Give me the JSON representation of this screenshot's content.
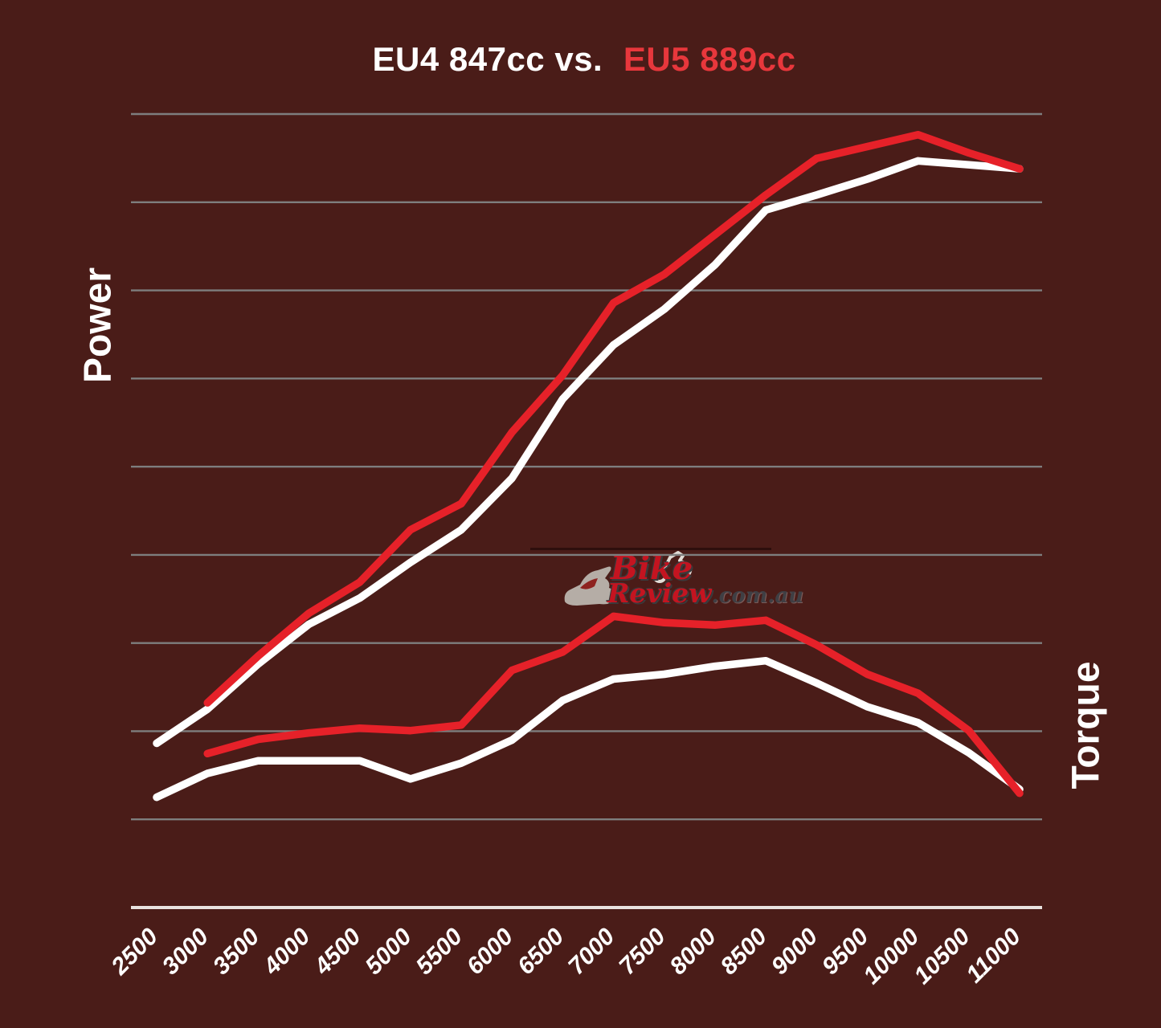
{
  "header": {
    "title_eu4": "EU4 847cc vs.",
    "title_eu5": "EU5 889cc"
  },
  "axes": {
    "left_label": "Power",
    "right_label": "Torque"
  },
  "watermark": {
    "bike": "Bike",
    "review": "Review",
    "domain": ".com.au"
  },
  "colors": {
    "background": "#4A1C18",
    "eu4": "#FFFFFF",
    "eu5": "#E62129",
    "gridline": "#7E7E7E",
    "axis_line": "#E8E2DF",
    "title_red": "#E8373C",
    "watermark_red": "#C41420",
    "watermark_gray": "#3F3F44"
  },
  "chart_data": {
    "type": "line",
    "title": "EU4 847cc vs. EU5 889cc",
    "xlabel": "",
    "ylabel_left": "Power",
    "ylabel_right": "Torque",
    "x_rpm": [
      2500,
      3000,
      3500,
      4000,
      4500,
      5000,
      5500,
      6000,
      6500,
      7000,
      7500,
      8000,
      8500,
      9000,
      9500,
      10000,
      10500,
      11000
    ],
    "ylim": [
      0,
      100
    ],
    "y_units": "relative height above baseline (chart shows no numeric y ticks)",
    "grid": "horizontal gridlines only",
    "legend": "none (color-coded via title)",
    "series": [
      {
        "id": "eu4_power",
        "name": "EU4 847cc Power",
        "color": "#FFFFFF",
        "values": [
          20.7,
          25.0,
          30.7,
          35.7,
          39.0,
          43.5,
          47.6,
          54.1,
          64.1,
          70.9,
          75.4,
          81.0,
          87.9,
          89.8,
          91.8,
          94.1,
          93.6,
          93.1
        ]
      },
      {
        "id": "eu5_power",
        "name": "EU5 889cc Power",
        "color": "#E62129",
        "values": [
          null,
          25.8,
          31.7,
          37.1,
          41.0,
          47.6,
          50.9,
          59.9,
          67.1,
          76.2,
          79.8,
          84.8,
          89.8,
          94.4,
          95.9,
          97.4,
          95.1,
          93.1
        ]
      },
      {
        "id": "eu4_torque",
        "name": "EU4 847cc Torque",
        "color": "#FFFFFF",
        "values": [
          13.9,
          16.9,
          18.5,
          18.5,
          18.5,
          16.2,
          18.2,
          21.1,
          26.1,
          28.8,
          29.4,
          30.4,
          31.1,
          28.3,
          25.3,
          23.3,
          19.5,
          14.9
        ]
      },
      {
        "id": "eu5_torque",
        "name": "EU5 889cc Torque",
        "color": "#E62129",
        "values": [
          null,
          19.4,
          21.2,
          22.0,
          22.6,
          22.3,
          23.0,
          29.9,
          32.2,
          36.7,
          35.9,
          35.6,
          36.2,
          33.1,
          29.4,
          27.0,
          22.3,
          14.4
        ]
      }
    ]
  }
}
